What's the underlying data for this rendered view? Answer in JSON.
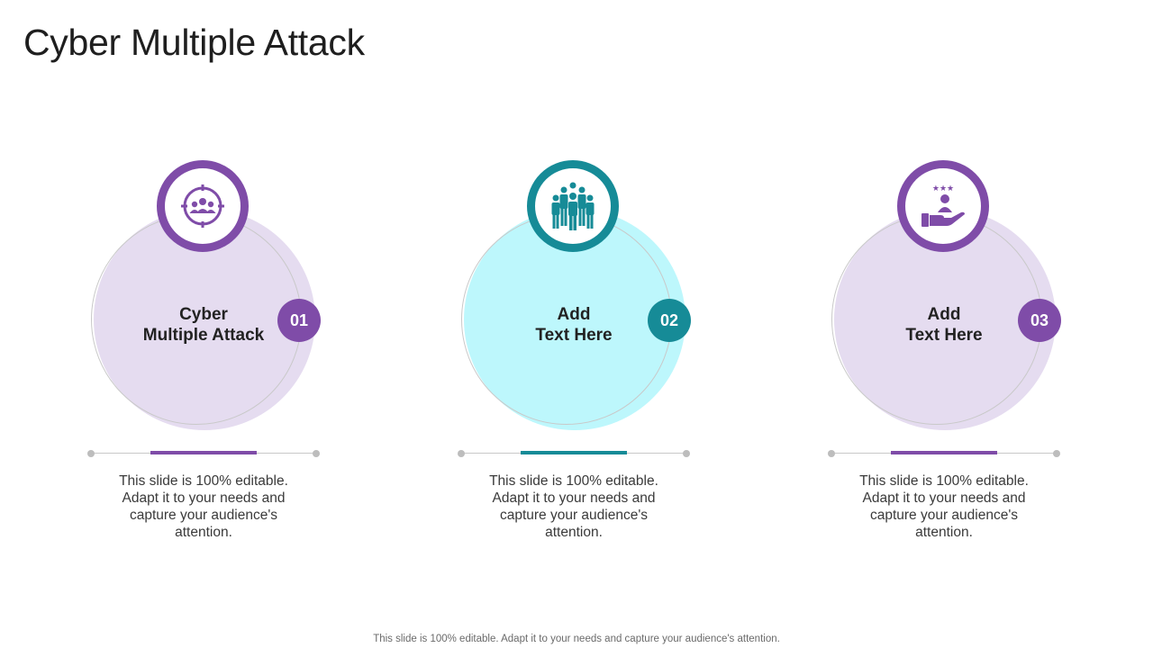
{
  "slide": {
    "title": "Cyber Multiple Attack",
    "footer": "This slide is 100% editable. Adapt it to your needs and capture your audience's attention."
  },
  "colors": {
    "purple": "#7f4ca8",
    "purple_light": "#e5dcf0",
    "teal": "#168b97",
    "teal_light": "#bdf7fc"
  },
  "cards": [
    {
      "title": "Cyber\nMultiple Attack",
      "number": "01",
      "icon": "target-group-icon",
      "description": "This slide is 100% editable. Adapt it to your needs and capture your audience's attention.",
      "accent": "#7f4ca8",
      "fill": "#e5dcf0"
    },
    {
      "title": "Add\nText Here",
      "number": "02",
      "icon": "team-group-icon",
      "description": "This slide is 100% editable. Adapt it to your needs and capture your audience's attention.",
      "accent": "#168b97",
      "fill": "#bdf7fc"
    },
    {
      "title": "Add\nText Here",
      "number": "03",
      "icon": "customer-rating-hand-icon",
      "description": "This slide is 100% editable. Adapt it to your needs and capture your audience's attention.",
      "accent": "#7f4ca8",
      "fill": "#e5dcf0"
    }
  ]
}
